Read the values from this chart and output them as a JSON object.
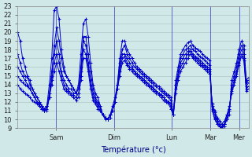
{
  "title": "",
  "xlabel": "Température (°c)",
  "ylabel": "",
  "xlim": [
    0,
    96
  ],
  "ylim": [
    9,
    23
  ],
  "yticks": [
    9,
    10,
    11,
    12,
    13,
    14,
    15,
    16,
    17,
    18,
    19,
    20,
    21,
    22,
    23
  ],
  "day_ticks": [
    16,
    40,
    64,
    80,
    92
  ],
  "day_labels": [
    "Sam",
    "Dim",
    "Lun",
    "Mar",
    "Mer"
  ],
  "background_color": "#d0e8e8",
  "grid_color": "#b0c8c8",
  "line_color": "#0000cc",
  "marker": "+",
  "lines": [
    [
      20.0,
      19.0,
      17.0,
      16.0,
      15.0,
      14.0,
      13.5,
      13.0,
      12.5,
      12.0,
      11.5,
      11.2,
      11.5,
      14.0,
      17.0,
      22.5,
      23.0,
      21.5,
      18.0,
      16.0,
      15.0,
      14.5,
      14.0,
      13.5,
      13.0,
      14.0,
      17.5,
      21.0,
      21.5,
      19.5,
      16.5,
      14.0,
      13.0,
      12.5,
      11.5,
      10.5,
      10.2,
      10.0,
      10.5,
      11.0,
      12.0,
      14.0,
      17.0,
      19.0,
      19.0,
      18.0,
      17.5,
      17.0,
      16.5,
      16.0,
      15.8,
      15.5,
      15.2,
      15.0,
      14.8,
      14.5,
      14.2,
      14.0,
      13.8,
      13.5,
      13.2,
      13.0,
      12.8,
      12.5,
      10.5,
      14.5,
      16.0,
      17.5,
      18.0,
      18.5,
      18.8,
      19.0,
      18.5,
      18.2,
      18.0,
      17.8,
      17.5,
      17.2,
      17.0,
      16.8,
      11.0,
      10.0,
      9.5,
      9.2,
      9.0,
      9.5,
      10.0,
      10.5,
      14.5,
      15.5,
      16.5,
      18.0,
      19.0,
      18.5,
      14.5,
      14.8
    ],
    [
      17.5,
      16.5,
      15.5,
      15.0,
      14.8,
      14.5,
      13.5,
      13.0,
      12.5,
      12.0,
      11.5,
      11.0,
      11.0,
      12.5,
      15.0,
      18.5,
      20.5,
      19.0,
      17.0,
      15.5,
      15.0,
      14.5,
      14.0,
      13.5,
      13.0,
      13.5,
      16.0,
      19.5,
      19.5,
      17.5,
      15.5,
      13.5,
      12.5,
      12.0,
      11.5,
      10.5,
      10.0,
      10.0,
      10.5,
      11.5,
      12.5,
      14.0,
      16.5,
      18.0,
      18.5,
      17.5,
      17.0,
      16.5,
      16.0,
      15.8,
      15.5,
      15.2,
      15.0,
      14.8,
      14.5,
      14.2,
      14.0,
      13.8,
      13.5,
      13.2,
      13.0,
      12.8,
      12.5,
      12.2,
      10.5,
      14.0,
      15.5,
      17.0,
      17.5,
      18.0,
      18.2,
      18.5,
      18.0,
      17.8,
      17.5,
      17.2,
      17.0,
      16.8,
      16.5,
      16.2,
      11.0,
      10.2,
      9.5,
      9.2,
      9.0,
      9.5,
      10.5,
      11.0,
      14.0,
      15.0,
      16.0,
      17.5,
      18.5,
      18.0,
      14.2,
      14.5
    ],
    [
      16.0,
      15.5,
      15.0,
      14.5,
      14.0,
      13.5,
      13.0,
      12.5,
      12.0,
      11.8,
      11.5,
      11.2,
      11.5,
      13.0,
      15.5,
      17.5,
      19.0,
      17.5,
      15.5,
      14.5,
      14.0,
      13.5,
      13.5,
      13.0,
      13.0,
      13.5,
      15.5,
      19.0,
      18.5,
      16.5,
      14.5,
      13.0,
      12.2,
      11.8,
      11.2,
      10.5,
      10.2,
      10.0,
      10.2,
      11.0,
      12.0,
      13.5,
      16.0,
      17.5,
      17.5,
      17.0,
      16.5,
      16.0,
      15.5,
      15.2,
      15.0,
      14.8,
      14.5,
      14.2,
      14.0,
      13.8,
      13.5,
      13.2,
      13.0,
      12.8,
      12.5,
      12.2,
      12.0,
      11.8,
      10.5,
      14.0,
      15.0,
      16.5,
      17.0,
      17.5,
      17.8,
      18.0,
      17.5,
      17.2,
      17.0,
      16.8,
      16.5,
      16.2,
      16.0,
      15.8,
      11.2,
      10.5,
      9.8,
      9.2,
      9.0,
      9.2,
      10.0,
      11.0,
      13.5,
      14.5,
      15.5,
      17.0,
      18.0,
      17.5,
      13.8,
      14.2
    ],
    [
      15.0,
      14.5,
      14.2,
      14.0,
      13.8,
      13.5,
      13.0,
      12.5,
      12.0,
      11.5,
      11.2,
      11.0,
      11.2,
      12.5,
      14.5,
      16.5,
      17.5,
      16.5,
      15.0,
      14.0,
      13.5,
      13.2,
      13.0,
      12.8,
      12.5,
      13.0,
      15.0,
      18.0,
      17.5,
      16.0,
      14.0,
      12.5,
      12.0,
      11.5,
      11.0,
      10.5,
      10.2,
      10.0,
      10.5,
      11.0,
      12.0,
      13.5,
      15.5,
      17.0,
      17.2,
      16.5,
      16.0,
      15.8,
      15.5,
      15.2,
      15.0,
      14.8,
      14.5,
      14.2,
      14.0,
      13.8,
      13.5,
      13.2,
      13.0,
      12.8,
      12.5,
      12.2,
      12.0,
      11.5,
      10.5,
      13.5,
      15.0,
      16.0,
      16.5,
      17.0,
      17.5,
      17.8,
      17.2,
      17.0,
      16.8,
      16.5,
      16.2,
      16.0,
      15.8,
      15.5,
      11.5,
      10.8,
      10.0,
      9.5,
      9.2,
      9.5,
      10.2,
      11.2,
      13.2,
      14.2,
      15.2,
      16.5,
      17.5,
      17.0,
      13.5,
      13.8
    ],
    [
      14.0,
      13.5,
      13.2,
      13.0,
      12.8,
      12.5,
      12.2,
      12.0,
      11.8,
      11.5,
      11.2,
      11.0,
      11.5,
      12.5,
      14.0,
      15.5,
      16.5,
      15.5,
      14.5,
      13.5,
      13.2,
      13.0,
      12.8,
      12.5,
      12.2,
      12.5,
      14.5,
      17.0,
      17.0,
      15.5,
      13.5,
      12.2,
      11.8,
      11.2,
      11.0,
      10.5,
      10.2,
      10.0,
      10.5,
      11.0,
      12.0,
      13.5,
      15.0,
      16.5,
      16.8,
      16.2,
      15.8,
      15.5,
      15.2,
      15.0,
      14.8,
      14.5,
      14.2,
      14.0,
      13.8,
      13.5,
      13.2,
      13.0,
      12.8,
      12.5,
      12.2,
      12.0,
      11.8,
      11.2,
      10.5,
      13.0,
      14.5,
      15.5,
      16.0,
      16.5,
      17.0,
      17.5,
      17.0,
      16.8,
      16.5,
      16.2,
      16.0,
      15.8,
      15.5,
      15.2,
      11.8,
      11.0,
      10.2,
      9.8,
      9.5,
      9.8,
      10.5,
      11.5,
      13.0,
      14.0,
      15.0,
      16.2,
      17.2,
      16.8,
      13.2,
      13.5
    ]
  ]
}
